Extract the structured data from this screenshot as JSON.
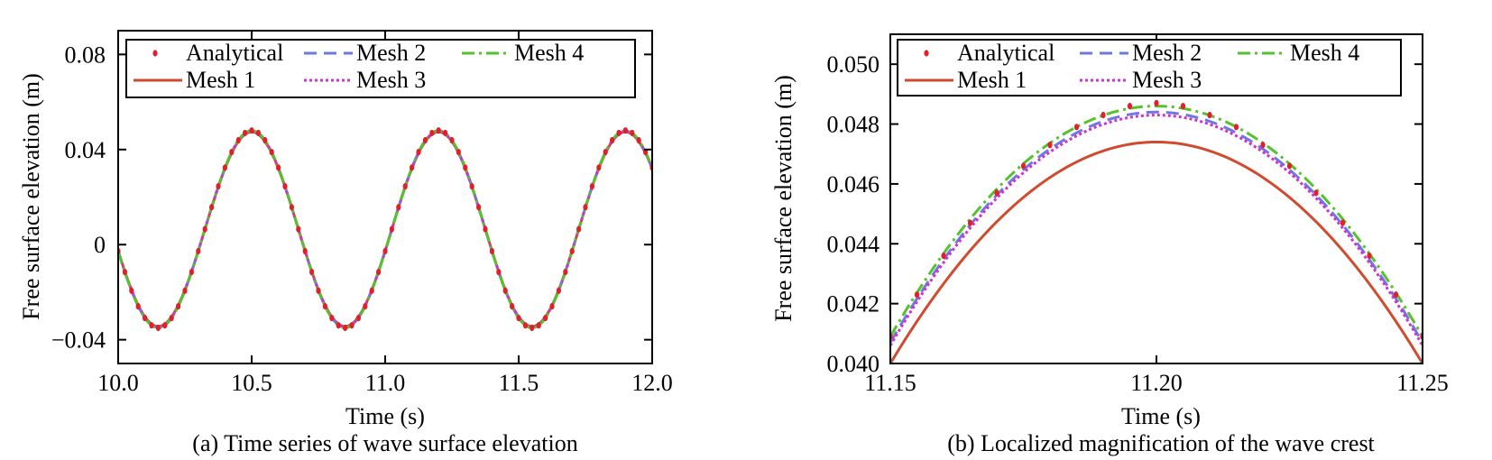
{
  "colors": {
    "analytical": "#e0202a",
    "mesh1": "#d24a2e",
    "mesh2": "#6e79e0",
    "mesh3": "#d02ed6",
    "mesh4": "#55c12c"
  },
  "chart_data": [
    {
      "type": "line",
      "caption": "(a) Time series of wave surface elevation",
      "xlabel": "Time (s)",
      "ylabel": "Free surface elevation (m)",
      "xlim": [
        10.0,
        12.0
      ],
      "ylim": [
        -0.05,
        0.09
      ],
      "xticks": [
        10.0,
        10.5,
        11.0,
        11.5,
        12.0
      ],
      "xtick_labels": [
        "10.0",
        "10.5",
        "11.0",
        "11.5",
        "12.0"
      ],
      "yticks": [
        -0.04,
        0,
        0.04,
        0.08
      ],
      "ytick_labels": [
        "−0.04",
        "0",
        "0.04",
        "0.08"
      ],
      "legend": [
        {
          "key": "analytical",
          "label": "Analytical"
        },
        {
          "key": "mesh2",
          "label": "Mesh 2"
        },
        {
          "key": "mesh4",
          "label": "Mesh 4"
        },
        {
          "key": "mesh1",
          "label": "Mesh 1"
        },
        {
          "key": "mesh3",
          "label": "Mesh 3"
        }
      ],
      "legend_position": "top",
      "wave": {
        "mean": 0.0065,
        "amplitude": 0.0415,
        "period": 0.7,
        "crest_time": 10.5
      },
      "series": [
        {
          "key": "analytical",
          "name": "Analytical",
          "style": "markers"
        },
        {
          "key": "mesh1",
          "name": "Mesh 1",
          "style": "solid"
        },
        {
          "key": "mesh2",
          "name": "Mesh 2",
          "style": "dashed"
        },
        {
          "key": "mesh3",
          "name": "Mesh 3",
          "style": "dotted"
        },
        {
          "key": "mesh4",
          "name": "Mesh 4",
          "style": "dashdot"
        }
      ]
    },
    {
      "type": "line",
      "caption": "(b) Localized magnification of the wave crest",
      "xlabel": "Time (s)",
      "ylabel": "Free surface elevation (m)",
      "xlim": [
        11.15,
        11.25
      ],
      "ylim": [
        0.04,
        0.051
      ],
      "xticks": [
        11.15,
        11.2,
        11.25
      ],
      "xtick_labels": [
        "11.15",
        "11.20",
        "11.25"
      ],
      "yticks": [
        0.04,
        0.042,
        0.044,
        0.046,
        0.048,
        0.05
      ],
      "ytick_labels": [
        "0.040",
        "0.042",
        "0.044",
        "0.046",
        "0.048",
        "0.050"
      ],
      "legend": [
        {
          "key": "analytical",
          "label": "Analytical"
        },
        {
          "key": "mesh2",
          "label": "Mesh 2"
        },
        {
          "key": "mesh4",
          "label": "Mesh 4"
        },
        {
          "key": "mesh1",
          "label": "Mesh 1"
        },
        {
          "key": "mesh3",
          "label": "Mesh 3"
        }
      ],
      "legend_position": "top",
      "series": [
        {
          "key": "analytical",
          "name": "Analytical",
          "style": "markers",
          "x": [
            11.15,
            11.155,
            11.16,
            11.165,
            11.17,
            11.175,
            11.18,
            11.185,
            11.19,
            11.195,
            11.2,
            11.205,
            11.21,
            11.215,
            11.22,
            11.225,
            11.23,
            11.235,
            11.24,
            11.245,
            11.25
          ],
          "y": [
            0.0409,
            0.0423,
            0.0436,
            0.0447,
            0.0457,
            0.0466,
            0.0473,
            0.0479,
            0.0483,
            0.0486,
            0.0487,
            0.0486,
            0.0483,
            0.0479,
            0.0473,
            0.0466,
            0.0457,
            0.0447,
            0.0436,
            0.0423,
            0.0409
          ]
        },
        {
          "key": "mesh1",
          "name": "Mesh 1",
          "style": "solid",
          "x": [
            11.15,
            11.2,
            11.25
          ],
          "y": [
            0.04,
            0.0474,
            0.04
          ]
        },
        {
          "key": "mesh2",
          "name": "Mesh 2",
          "style": "dashed",
          "x": [
            11.15,
            11.2,
            11.25
          ],
          "y": [
            0.0407,
            0.0484,
            0.0407
          ]
        },
        {
          "key": "mesh3",
          "name": "Mesh 3",
          "style": "dotted",
          "x": [
            11.15,
            11.2,
            11.25
          ],
          "y": [
            0.0406,
            0.0483,
            0.0406
          ]
        },
        {
          "key": "mesh4",
          "name": "Mesh 4",
          "style": "dashdot",
          "x": [
            11.15,
            11.2,
            11.25
          ],
          "y": [
            0.0409,
            0.0486,
            0.0409
          ]
        }
      ]
    }
  ]
}
